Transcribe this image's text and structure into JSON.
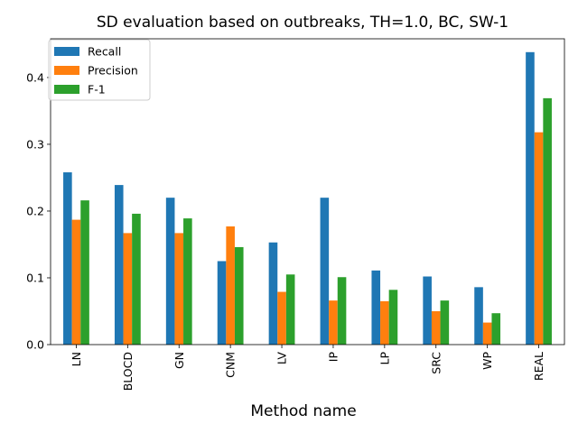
{
  "chart_data": {
    "type": "bar",
    "title": "SD evaluation based on outbreaks, TH=1.0, BC, SW-1",
    "xlabel": "Method name",
    "ylabel": "",
    "categories": [
      "LN",
      "BLOCD",
      "GN",
      "CNM",
      "LV",
      "IP",
      "LP",
      "SRC",
      "WP",
      "REAL"
    ],
    "ylim": [
      0,
      0.458
    ],
    "yticks": [
      0.0,
      0.1,
      0.2,
      0.3,
      0.4
    ],
    "ytick_labels": [
      "0.0",
      "0.1",
      "0.2",
      "0.3",
      "0.4"
    ],
    "grid": false,
    "legend_position": "top-left",
    "series": [
      {
        "name": "Recall",
        "color": "#1f77b4",
        "values": [
          0.258,
          0.239,
          0.22,
          0.125,
          0.153,
          0.22,
          0.111,
          0.102,
          0.086,
          0.438
        ]
      },
      {
        "name": "Precision",
        "color": "#ff7f0e",
        "values": [
          0.187,
          0.167,
          0.167,
          0.177,
          0.079,
          0.066,
          0.065,
          0.05,
          0.033,
          0.318
        ]
      },
      {
        "name": "F-1",
        "color": "#2ca02c",
        "values": [
          0.216,
          0.196,
          0.189,
          0.146,
          0.105,
          0.101,
          0.082,
          0.066,
          0.047,
          0.369
        ]
      }
    ]
  }
}
